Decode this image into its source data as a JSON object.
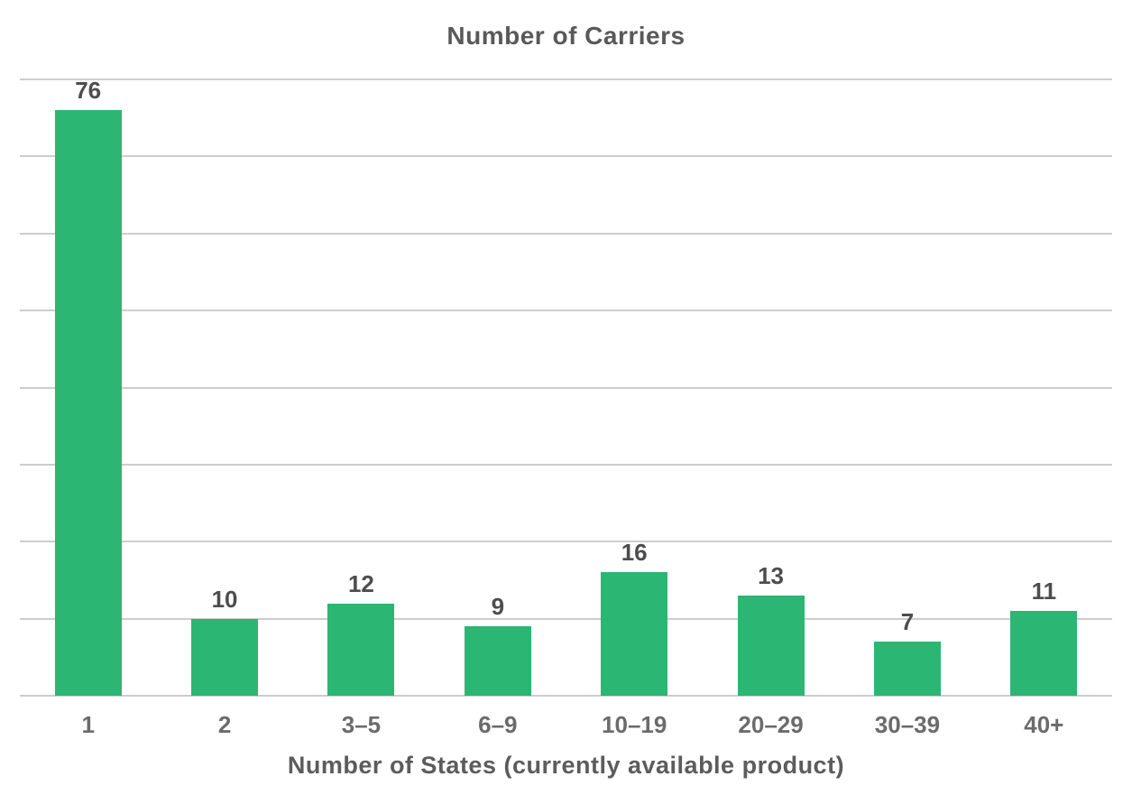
{
  "chart_data": {
    "type": "bar",
    "title": "Number of Carriers",
    "xlabel": "Number of States (currently available product)",
    "ylabel": "",
    "categories": [
      "1",
      "2",
      "3–5",
      "6–9",
      "10–19",
      "20–29",
      "30–39",
      "40+"
    ],
    "values": [
      76,
      10,
      12,
      9,
      16,
      13,
      7,
      11
    ],
    "ylim": [
      0,
      80
    ],
    "gridline_step": 10,
    "grid": "horizontal-only",
    "y_tick_labels_visible": false,
    "data_labels_visible": true,
    "legend": "none",
    "colors": {
      "background": "#ffffff",
      "bar": "#2bb673",
      "grid": "#cdcdcd",
      "title": "#595959",
      "value_label": "#4d4d4d",
      "tick_label": "#6b6b6b",
      "axis_title": "#5c5c5c"
    }
  }
}
